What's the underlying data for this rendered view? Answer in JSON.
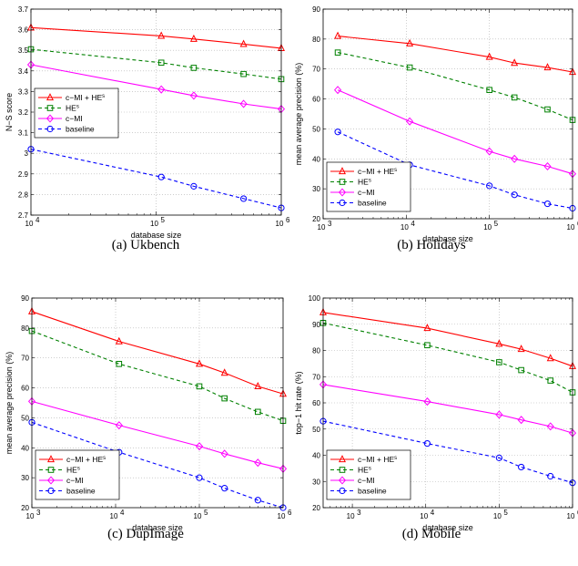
{
  "chart_data": [
    {
      "type": "line",
      "caption": "(a) Ukbench",
      "xlabel": "database size",
      "ylabel": "N−S score",
      "xscale": "log",
      "xlim": [
        10000,
        1000000
      ],
      "ylim": [
        2.7,
        3.7
      ],
      "xticks": [
        10000,
        100000,
        1000000
      ],
      "xtick_labels": [
        {
          "b": "10",
          "e": "4"
        },
        {
          "b": "10",
          "e": "5"
        },
        {
          "b": "10",
          "e": "6"
        }
      ],
      "yticks": [
        2.7,
        2.8,
        2.9,
        3.0,
        3.1,
        3.2,
        3.3,
        3.4,
        3.5,
        3.6,
        3.7
      ],
      "ytick_labels": [
        "2.7",
        "2.8",
        "2.9",
        "3",
        "3.1",
        "3.2",
        "3.3",
        "3.4",
        "3.5",
        "3.6",
        "3.7"
      ],
      "grid": true,
      "legend_position": "center-left",
      "series": [
        {
          "name": "c−MI + HE",
          "sup": "s",
          "color": "#ff0000",
          "dash": "solid",
          "marker": "triangle",
          "x": [
            10000,
            110000,
            200000,
            500000,
            1000000
          ],
          "y": [
            3.61,
            3.57,
            3.555,
            3.53,
            3.51
          ]
        },
        {
          "name": "HE",
          "sup": "s",
          "color": "#008000",
          "dash": "dashed",
          "marker": "square",
          "x": [
            10000,
            110000,
            200000,
            500000,
            1000000
          ],
          "y": [
            3.505,
            3.44,
            3.415,
            3.385,
            3.36
          ]
        },
        {
          "name": "c−MI",
          "sup": "",
          "color": "#ff00ff",
          "dash": "solid",
          "marker": "diamond",
          "x": [
            10000,
            110000,
            200000,
            500000,
            1000000
          ],
          "y": [
            3.43,
            3.31,
            3.28,
            3.24,
            3.215
          ]
        },
        {
          "name": "baseline",
          "sup": "",
          "color": "#0000ff",
          "dash": "dashed",
          "marker": "circle",
          "x": [
            10000,
            110000,
            200000,
            500000,
            1000000
          ],
          "y": [
            3.02,
            2.885,
            2.84,
            2.78,
            2.735
          ]
        }
      ]
    },
    {
      "type": "line",
      "caption": "(b) Holidays",
      "xlabel": "database size",
      "ylabel": "mean average precision (%)",
      "xscale": "log",
      "xlim": [
        1000,
        1000000
      ],
      "ylim": [
        20,
        90
      ],
      "xticks": [
        1000,
        10000,
        100000,
        1000000
      ],
      "xtick_labels": [
        {
          "b": "10",
          "e": "3"
        },
        {
          "b": "10",
          "e": "4"
        },
        {
          "b": "10",
          "e": "5"
        },
        {
          "b": "10",
          "e": "6"
        }
      ],
      "yticks": [
        20,
        30,
        40,
        50,
        60,
        70,
        80,
        90
      ],
      "ytick_labels": [
        "20",
        "30",
        "40",
        "50",
        "60",
        "70",
        "80",
        "90"
      ],
      "grid": true,
      "legend_position": "bottom-left",
      "series": [
        {
          "name": "c−MI + HE",
          "sup": "s",
          "color": "#ff0000",
          "dash": "solid",
          "marker": "triangle",
          "x": [
            1500,
            11000,
            100000,
            200000,
            500000,
            1000000
          ],
          "y": [
            81,
            78.5,
            74,
            72,
            70.5,
            69
          ]
        },
        {
          "name": "HE",
          "sup": "s",
          "color": "#008000",
          "dash": "dashed",
          "marker": "square",
          "x": [
            1500,
            11000,
            100000,
            200000,
            500000,
            1000000
          ],
          "y": [
            75.5,
            70.5,
            63,
            60.5,
            56.5,
            53
          ]
        },
        {
          "name": "c−MI",
          "sup": "",
          "color": "#ff00ff",
          "dash": "solid",
          "marker": "diamond",
          "x": [
            1500,
            11000,
            100000,
            200000,
            500000,
            1000000
          ],
          "y": [
            63,
            52.5,
            42.5,
            40,
            37.5,
            35
          ]
        },
        {
          "name": "baseline",
          "sup": "",
          "color": "#0000ff",
          "dash": "dashed",
          "marker": "circle",
          "x": [
            1500,
            11000,
            100000,
            200000,
            500000,
            1000000
          ],
          "y": [
            49,
            38,
            31,
            28,
            25,
            23.5
          ]
        }
      ]
    },
    {
      "type": "line",
      "caption": "(c) DupImage",
      "xlabel": "database size",
      "ylabel": "mean average precision (%)",
      "xscale": "log",
      "xlim": [
        1000,
        1000000
      ],
      "ylim": [
        20,
        90
      ],
      "xticks": [
        1000,
        10000,
        100000,
        1000000
      ],
      "xtick_labels": [
        {
          "b": "10",
          "e": "3"
        },
        {
          "b": "10",
          "e": "4"
        },
        {
          "b": "10",
          "e": "5"
        },
        {
          "b": "10",
          "e": "6"
        }
      ],
      "yticks": [
        20,
        30,
        40,
        50,
        60,
        70,
        80,
        90
      ],
      "ytick_labels": [
        "20",
        "30",
        "40",
        "50",
        "60",
        "70",
        "80",
        "90"
      ],
      "grid": true,
      "legend_position": "bottom-left",
      "series": [
        {
          "name": "c−MI + HE",
          "sup": "s",
          "color": "#ff0000",
          "dash": "solid",
          "marker": "triangle",
          "x": [
            1000,
            11000,
            100000,
            200000,
            500000,
            1000000
          ],
          "y": [
            85.5,
            75.5,
            68,
            65,
            60.5,
            58
          ]
        },
        {
          "name": "HE",
          "sup": "s",
          "color": "#008000",
          "dash": "dashed",
          "marker": "square",
          "x": [
            1000,
            11000,
            100000,
            200000,
            500000,
            1000000
          ],
          "y": [
            79,
            68,
            60.5,
            56.5,
            52,
            49
          ]
        },
        {
          "name": "c−MI",
          "sup": "",
          "color": "#ff00ff",
          "dash": "solid",
          "marker": "diamond",
          "x": [
            1000,
            11000,
            100000,
            200000,
            500000,
            1000000
          ],
          "y": [
            55.5,
            47.5,
            40.5,
            38,
            35,
            33
          ]
        },
        {
          "name": "baseline",
          "sup": "",
          "color": "#0000ff",
          "dash": "dashed",
          "marker": "circle",
          "x": [
            1000,
            11000,
            100000,
            200000,
            500000,
            1000000
          ],
          "y": [
            48.5,
            38.5,
            30,
            26.5,
            22.5,
            20
          ]
        }
      ]
    },
    {
      "type": "line",
      "caption": "(d) Mobile",
      "xlabel": "database size",
      "ylabel": "top−1 hit rate (%)",
      "xscale": "log",
      "xlim": [
        400,
        1000000
      ],
      "ylim": [
        20,
        100
      ],
      "xticks": [
        1000,
        10000,
        100000,
        1000000
      ],
      "xtick_labels": [
        {
          "b": "10",
          "e": "3"
        },
        {
          "b": "10",
          "e": "4"
        },
        {
          "b": "10",
          "e": "5"
        },
        {
          "b": "10",
          "e": "6"
        }
      ],
      "yticks": [
        20,
        30,
        40,
        50,
        60,
        70,
        80,
        90,
        100
      ],
      "ytick_labels": [
        "20",
        "30",
        "40",
        "50",
        "60",
        "70",
        "80",
        "90",
        "100"
      ],
      "grid": true,
      "legend_position": "bottom-left",
      "series": [
        {
          "name": "c−MI + HE",
          "sup": "s",
          "color": "#ff0000",
          "dash": "solid",
          "marker": "triangle",
          "x": [
            400,
            10500,
            100000,
            200000,
            500000,
            1000000
          ],
          "y": [
            94.5,
            88.5,
            82.5,
            80.5,
            77,
            74
          ]
        },
        {
          "name": "HE",
          "sup": "s",
          "color": "#008000",
          "dash": "dashed",
          "marker": "square",
          "x": [
            400,
            10500,
            100000,
            200000,
            500000,
            1000000
          ],
          "y": [
            90.5,
            82,
            75.5,
            72.5,
            68.5,
            64
          ]
        },
        {
          "name": "c−MI",
          "sup": "",
          "color": "#ff00ff",
          "dash": "solid",
          "marker": "diamond",
          "x": [
            400,
            10500,
            100000,
            200000,
            500000,
            1000000
          ],
          "y": [
            67,
            60.5,
            55.5,
            53.5,
            51,
            48.5
          ]
        },
        {
          "name": "baseline",
          "sup": "",
          "color": "#0000ff",
          "dash": "dashed",
          "marker": "circle",
          "x": [
            400,
            10500,
            100000,
            200000,
            500000,
            1000000
          ],
          "y": [
            53,
            44.5,
            39,
            35.5,
            32,
            29.5
          ]
        }
      ]
    }
  ]
}
